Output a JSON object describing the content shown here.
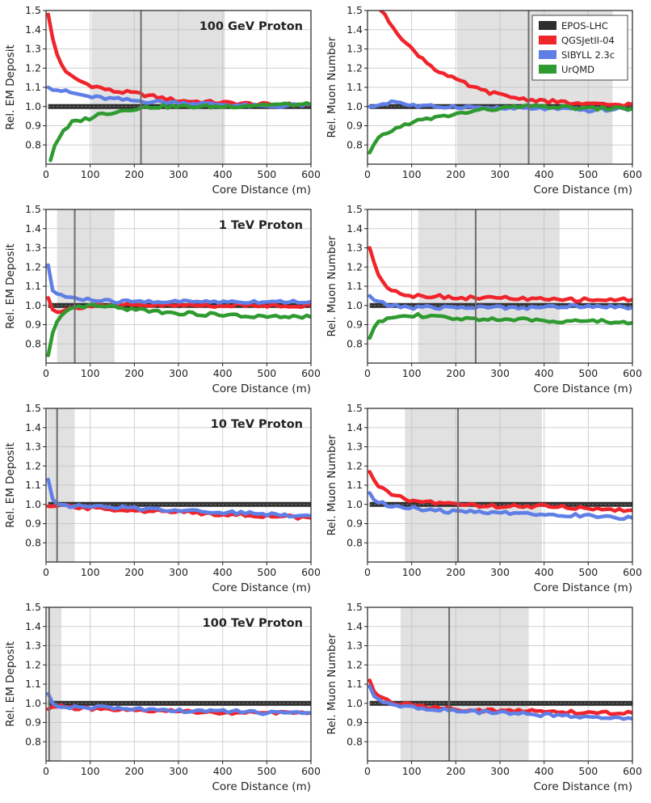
{
  "chart_data": {
    "type": "line",
    "layout": "4 rows x 2 columns",
    "series_styles": [
      {
        "name": "EPOS-LHC",
        "color": "#2e2e2e"
      },
      {
        "name": "QGSJetII-04",
        "color": "#f0242b"
      },
      {
        "name": "SIBYLL 2.3c",
        "color": "#5f7fe6"
      },
      {
        "name": "UrQMD",
        "color": "#2f9a2f"
      }
    ],
    "xlim": [
      0,
      600
    ],
    "ylim": [
      0.7,
      1.5
    ],
    "xticks": [
      0,
      100,
      200,
      300,
      400,
      500,
      600
    ],
    "yticks": [
      0.8,
      0.9,
      1.0,
      1.1,
      1.2,
      1.3,
      1.4,
      1.5
    ],
    "xlabel": "Core Distance (m)",
    "panels": [
      {
        "id": "p100gev-em",
        "title": "100 GeV Proton",
        "ylabel": "Rel. EM Deposit",
        "shade": [
          103,
          405
        ],
        "vline": 215,
        "legend": false,
        "series": [
          {
            "name": "EPOS-LHC",
            "x": [
              5,
              600
            ],
            "y": [
              1.0,
              1.0
            ]
          },
          {
            "name": "QGSJetII-04",
            "x": [
              5,
              10,
              20,
              30,
              40,
              50,
              60,
              80,
              100,
              120,
              150,
              200,
              250,
              300,
              400,
              500,
              600
            ],
            "y": [
              1.48,
              1.4,
              1.3,
              1.24,
              1.2,
              1.17,
              1.15,
              1.13,
              1.11,
              1.1,
              1.08,
              1.07,
              1.05,
              1.03,
              1.02,
              1.01,
              1.01
            ]
          },
          {
            "name": "SIBYLL 2.3c",
            "x": [
              5,
              20,
              40,
              60,
              80,
              100,
              150,
              200,
              300,
              400,
              500,
              600
            ],
            "y": [
              1.1,
              1.09,
              1.08,
              1.07,
              1.06,
              1.05,
              1.04,
              1.03,
              1.02,
              1.01,
              1.0,
              1.01
            ]
          },
          {
            "name": "UrQMD",
            "x": [
              10,
              20,
              30,
              40,
              50,
              60,
              80,
              100,
              120,
              150,
              200,
              250,
              300,
              400,
              500,
              600
            ],
            "y": [
              0.72,
              0.8,
              0.84,
              0.87,
              0.89,
              0.92,
              0.93,
              0.94,
              0.96,
              0.97,
              0.99,
              1.0,
              1.0,
              1.0,
              1.01,
              1.01
            ]
          }
        ]
      },
      {
        "id": "p100gev-mu",
        "title": "",
        "ylabel": "Rel. Muon Number",
        "shade": [
          203,
          555
        ],
        "vline": 365,
        "legend": true,
        "series": [
          {
            "name": "EPOS-LHC",
            "x": [
              5,
              600
            ],
            "y": [
              1.0,
              1.0
            ]
          },
          {
            "name": "QGSJetII-04",
            "x": [
              30,
              50,
              70,
              90,
              110,
              130,
              150,
              180,
              210,
              250,
              300,
              350,
              400,
              450,
              500,
              550,
              600
            ],
            "y": [
              1.5,
              1.44,
              1.38,
              1.32,
              1.28,
              1.24,
              1.2,
              1.16,
              1.13,
              1.09,
              1.06,
              1.04,
              1.03,
              1.02,
              1.01,
              1.01,
              1.01
            ]
          },
          {
            "name": "SIBYLL 2.3c",
            "x": [
              5,
              30,
              60,
              90,
              120,
              200,
              300,
              400,
              500,
              600
            ],
            "y": [
              1.0,
              1.01,
              1.03,
              1.01,
              1.0,
              1.0,
              0.99,
              0.99,
              0.98,
              0.99
            ]
          },
          {
            "name": "UrQMD",
            "x": [
              5,
              20,
              40,
              60,
              80,
              100,
              150,
              200,
              250,
              300,
              350,
              400,
              500,
              600
            ],
            "y": [
              0.76,
              0.82,
              0.86,
              0.88,
              0.9,
              0.92,
              0.94,
              0.96,
              0.98,
              0.99,
              1.0,
              1.0,
              0.99,
              0.99
            ]
          }
        ]
      },
      {
        "id": "p1tev-em",
        "title": "1 TeV Proton",
        "ylabel": "Rel. EM Deposit",
        "shade": [
          25,
          155
        ],
        "vline": 65,
        "legend": false,
        "series": [
          {
            "name": "EPOS-LHC",
            "x": [
              5,
              600
            ],
            "y": [
              1.0,
              1.0
            ]
          },
          {
            "name": "QGSJetII-04",
            "x": [
              5,
              10,
              20,
              30,
              50,
              70,
              100,
              150,
              200,
              300,
              400,
              500,
              600
            ],
            "y": [
              1.04,
              1.0,
              0.97,
              0.97,
              0.98,
              0.99,
              1.0,
              1.0,
              1.0,
              1.0,
              1.0,
              1.0,
              1.0
            ]
          },
          {
            "name": "SIBYLL 2.3c",
            "x": [
              5,
              10,
              15,
              25,
              40,
              60,
              80,
              100,
              150,
              200,
              300,
              400,
              500,
              600
            ],
            "y": [
              1.21,
              1.11,
              1.08,
              1.06,
              1.05,
              1.04,
              1.03,
              1.03,
              1.02,
              1.02,
              1.02,
              1.02,
              1.02,
              1.02
            ]
          },
          {
            "name": "UrQMD",
            "x": [
              5,
              10,
              20,
              30,
              50,
              70,
              100,
              150,
              200,
              250,
              300,
              400,
              500,
              600
            ],
            "y": [
              0.74,
              0.82,
              0.89,
              0.93,
              0.97,
              0.99,
              1.0,
              0.99,
              0.98,
              0.97,
              0.96,
              0.95,
              0.94,
              0.94
            ]
          }
        ]
      },
      {
        "id": "p1tev-mu",
        "title": "",
        "ylabel": "Rel. Muon Number",
        "shade": [
          115,
          435
        ],
        "vline": 245,
        "legend": false,
        "series": [
          {
            "name": "EPOS-LHC",
            "x": [
              5,
              600
            ],
            "y": [
              1.0,
              1.0
            ]
          },
          {
            "name": "QGSJetII-04",
            "x": [
              5,
              10,
              20,
              30,
              40,
              50,
              60,
              80,
              100,
              150,
              200,
              300,
              400,
              500,
              600
            ],
            "y": [
              1.3,
              1.25,
              1.18,
              1.14,
              1.11,
              1.09,
              1.08,
              1.06,
              1.05,
              1.05,
              1.04,
              1.04,
              1.03,
              1.03,
              1.03
            ]
          },
          {
            "name": "SIBYLL 2.3c",
            "x": [
              5,
              20,
              50,
              100,
              200,
              300,
              400,
              500,
              600
            ],
            "y": [
              1.05,
              1.02,
              1.0,
              0.99,
              0.99,
              0.99,
              0.99,
              1.0,
              0.99
            ]
          },
          {
            "name": "UrQMD",
            "x": [
              5,
              10,
              20,
              30,
              50,
              70,
              100,
              150,
              200,
              300,
              400,
              500,
              600
            ],
            "y": [
              0.83,
              0.87,
              0.9,
              0.92,
              0.94,
              0.95,
              0.95,
              0.94,
              0.93,
              0.93,
              0.92,
              0.92,
              0.91
            ]
          }
        ]
      },
      {
        "id": "p10tev-em",
        "title": "10 TeV Proton",
        "ylabel": "Rel. EM Deposit",
        "shade": [
          3,
          65
        ],
        "vline": 25,
        "legend": false,
        "series": [
          {
            "name": "EPOS-LHC",
            "x": [
              5,
              600
            ],
            "y": [
              1.0,
              1.0
            ]
          },
          {
            "name": "QGSJetII-04",
            "x": [
              5,
              10,
              20,
              30,
              50,
              100,
              200,
              300,
              400,
              500,
              600
            ],
            "y": [
              0.99,
              0.99,
              0.99,
              0.99,
              0.99,
              0.98,
              0.97,
              0.96,
              0.95,
              0.94,
              0.93
            ]
          },
          {
            "name": "SIBYLL 2.3c",
            "x": [
              5,
              10,
              15,
              25,
              40,
              60,
              100,
              200,
              300,
              400,
              500,
              600
            ],
            "y": [
              1.13,
              1.06,
              1.03,
              1.01,
              1.0,
              0.99,
              0.99,
              0.98,
              0.97,
              0.96,
              0.95,
              0.94
            ]
          }
        ]
      },
      {
        "id": "p10tev-mu",
        "title": "",
        "ylabel": "Rel. Muon Number",
        "shade": [
          85,
          395
        ],
        "vline": 205,
        "legend": false,
        "series": [
          {
            "name": "EPOS-LHC",
            "x": [
              5,
              600
            ],
            "y": [
              1.0,
              1.0
            ]
          },
          {
            "name": "QGSJetII-04",
            "x": [
              5,
              10,
              20,
              40,
              60,
              80,
              100,
              150,
              200,
              300,
              400,
              500,
              600
            ],
            "y": [
              1.17,
              1.14,
              1.1,
              1.07,
              1.05,
              1.03,
              1.02,
              1.01,
              1.0,
              0.99,
              0.99,
              0.98,
              0.97
            ]
          },
          {
            "name": "SIBYLL 2.3c",
            "x": [
              5,
              10,
              20,
              40,
              60,
              100,
              150,
              200,
              300,
              400,
              500,
              600
            ],
            "y": [
              1.06,
              1.04,
              1.02,
              1.0,
              0.99,
              0.98,
              0.97,
              0.96,
              0.96,
              0.95,
              0.94,
              0.93
            ]
          }
        ]
      },
      {
        "id": "p100tev-em",
        "title": "100 TeV Proton",
        "ylabel": "Rel. EM Deposit",
        "shade": [
          3,
          35
        ],
        "vline": 7,
        "legend": false,
        "series": [
          {
            "name": "EPOS-LHC",
            "x": [
              5,
              600
            ],
            "y": [
              1.0,
              1.0
            ]
          },
          {
            "name": "QGSJetII-04",
            "x": [
              5,
              10,
              20,
              40,
              100,
              200,
              300,
              400,
              500,
              600
            ],
            "y": [
              0.97,
              0.99,
              0.99,
              0.98,
              0.97,
              0.96,
              0.96,
              0.95,
              0.95,
              0.95
            ]
          },
          {
            "name": "SIBYLL 2.3c",
            "x": [
              5,
              10,
              20,
              40,
              100,
              200,
              300,
              400,
              500,
              600
            ],
            "y": [
              1.05,
              1.01,
              0.99,
              0.98,
              0.98,
              0.97,
              0.96,
              0.96,
              0.95,
              0.95
            ]
          }
        ]
      },
      {
        "id": "p100tev-mu",
        "title": "",
        "ylabel": "Rel. Muon Number",
        "shade": [
          75,
          365
        ],
        "vline": 185,
        "legend": false,
        "series": [
          {
            "name": "EPOS-LHC",
            "x": [
              5,
              600
            ],
            "y": [
              1.0,
              1.0
            ]
          },
          {
            "name": "QGSJetII-04",
            "x": [
              5,
              10,
              20,
              40,
              60,
              100,
              150,
              200,
              300,
              400,
              500,
              600
            ],
            "y": [
              1.12,
              1.08,
              1.05,
              1.02,
              1.0,
              0.99,
              0.98,
              0.97,
              0.96,
              0.96,
              0.95,
              0.95
            ]
          },
          {
            "name": "SIBYLL 2.3c",
            "x": [
              5,
              10,
              20,
              40,
              60,
              100,
              150,
              200,
              300,
              400,
              500,
              600
            ],
            "y": [
              1.09,
              1.05,
              1.02,
              1.0,
              0.99,
              0.98,
              0.97,
              0.96,
              0.95,
              0.94,
              0.93,
              0.92
            ]
          }
        ]
      }
    ]
  }
}
